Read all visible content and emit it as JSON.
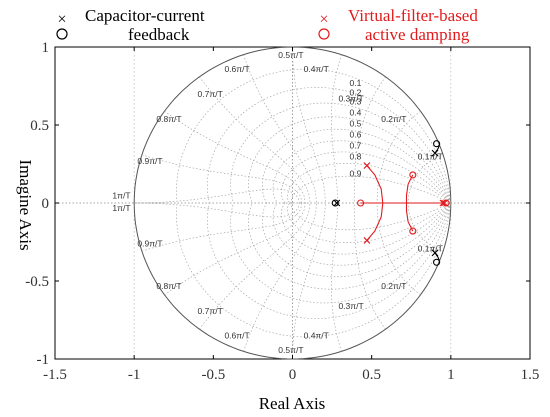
{
  "chart_data": {
    "type": "scatter",
    "title": "",
    "xlabel": "Real Axis",
    "ylabel": "Imagine Axis",
    "xlim": [
      -1.5,
      1.5
    ],
    "ylim": [
      -1,
      1
    ],
    "x_ticks": [
      -1.5,
      -1,
      -0.5,
      0,
      0.5,
      1,
      1.5
    ],
    "y_ticks": [
      -1,
      -0.5,
      0,
      0.5,
      1
    ],
    "x_tick_labels": [
      "-1.5",
      "-1",
      "-0.5",
      "0",
      "0.5",
      "1",
      "1.5"
    ],
    "y_tick_labels": [
      "-1",
      "-0.5",
      "0",
      "0.5",
      "1"
    ],
    "grid": "z-plane damping / natural-frequency grid",
    "legend_position": "top",
    "zeta_labels": [
      "0.1",
      "0.2",
      "0.3",
      "0.4",
      "0.5",
      "0.6",
      "0.7",
      "0.8",
      "0.9"
    ],
    "wn_labels_upper": [
      "0.1π/T",
      "0.2π/T",
      "0.3π/T",
      "0.4π/T",
      "0.5π/T",
      "0.6π/T",
      "0.7π/T",
      "0.8π/T",
      "0.9π/T",
      "1π/T"
    ],
    "wn_labels_lower": [
      "0.1π/T",
      "0.2π/T",
      "0.3π/T",
      "0.4π/T",
      "0.5π/T",
      "0.6π/T",
      "0.7π/T",
      "0.8π/T",
      "0.9π/T",
      "1π/T"
    ],
    "series": [
      {
        "name": "Capacitor-current feedback",
        "color": "#000000",
        "poles": [
          [
            0.9,
            0.32
          ],
          [
            0.9,
            -0.32
          ],
          [
            0.28,
            0.0
          ]
        ],
        "zeros": [
          [
            0.91,
            0.38
          ],
          [
            0.91,
            -0.38
          ],
          [
            0.27,
            0.0
          ]
        ],
        "locus": [
          [
            [
              0.9,
              0.32
            ],
            [
              0.92,
              0.35
            ],
            [
              0.93,
              0.38
            ]
          ],
          [
            [
              0.9,
              -0.32
            ],
            [
              0.92,
              -0.35
            ],
            [
              0.93,
              -0.38
            ]
          ]
        ]
      },
      {
        "name": "Virtual-filter-based active damping",
        "color": "#e31a1c",
        "poles": [
          [
            0.47,
            0.24
          ],
          [
            0.47,
            -0.24
          ],
          [
            0.96,
            0.0
          ],
          [
            0.95,
            0.0
          ]
        ],
        "zeros": [
          [
            0.43,
            0.0
          ],
          [
            0.76,
            0.18
          ],
          [
            0.76,
            -0.18
          ],
          [
            0.97,
            0.0
          ]
        ],
        "locus": [
          [
            [
              0.47,
              0.24
            ],
            [
              0.52,
              0.18
            ],
            [
              0.56,
              0.09
            ],
            [
              0.57,
              0.0
            ],
            [
              0.56,
              -0.09
            ],
            [
              0.52,
              -0.18
            ],
            [
              0.47,
              -0.24
            ]
          ],
          [
            [
              0.76,
              0.18
            ],
            [
              0.73,
              0.12
            ],
            [
              0.72,
              0.05
            ],
            [
              0.72,
              0.0
            ],
            [
              0.72,
              -0.05
            ],
            [
              0.73,
              -0.12
            ],
            [
              0.76,
              -0.18
            ]
          ],
          [
            [
              0.43,
              0.0
            ],
            [
              0.96,
              0.0
            ]
          ]
        ]
      }
    ]
  },
  "legend": {
    "black_label_line1": "Capacitor-current",
    "black_label_line2": "feedback",
    "red_label_line1": "Virtual-filter-based",
    "red_label_line2": "active damping"
  }
}
